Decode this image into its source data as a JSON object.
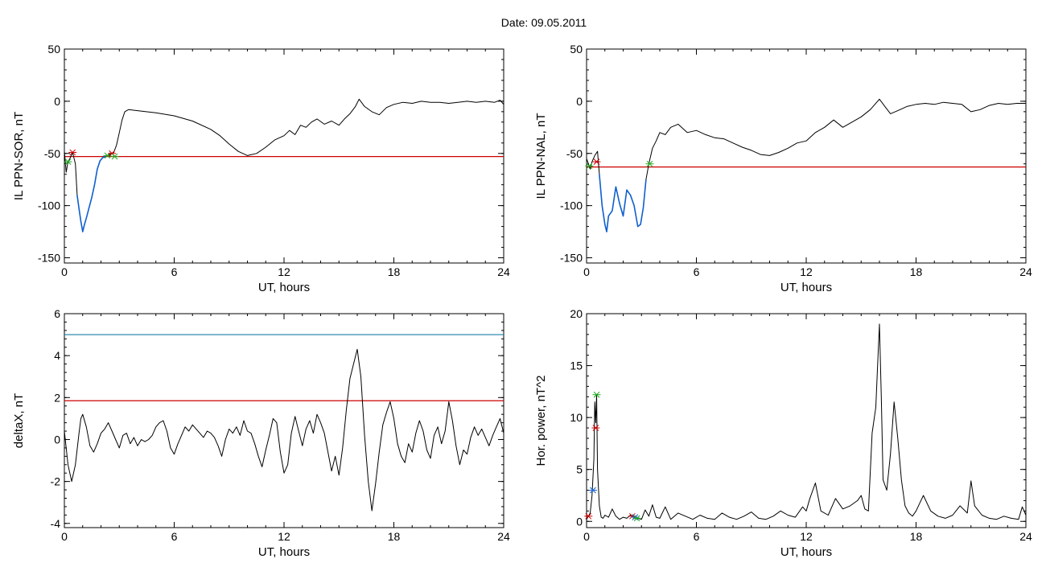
{
  "figure": {
    "title": "Date:  09.05.2011"
  },
  "colors": {
    "trace": "#000000",
    "threshold": "#cc0000",
    "highlight": "#1060d0",
    "cyan_line": "#1a7fa8",
    "marker_red": "#cc0000",
    "marker_green": "#22aa22",
    "marker_blue": "#1060d0"
  },
  "chart_data": [
    {
      "type": "line",
      "id": "ppn-sor",
      "xlabel": "UT, hours",
      "ylabel": "IL PPN-SOR, nT",
      "xlim": [
        0,
        24
      ],
      "ylim": [
        -155,
        50
      ],
      "xticks": [
        0,
        6,
        12,
        18,
        24
      ],
      "yticks": [
        -150,
        -100,
        -50,
        0,
        50
      ],
      "threshold": -53,
      "series": [
        {
          "x": [
            0,
            0.1,
            0.2,
            0.3,
            0.45,
            0.6,
            0.7,
            0.8,
            0.9,
            1.0,
            1.1,
            1.2,
            1.35,
            1.5,
            1.65,
            1.8,
            1.95,
            2.1,
            2.25,
            2.4,
            2.55,
            2.7,
            2.85,
            3.0,
            3.15,
            3.3,
            3.5,
            4,
            5,
            6,
            7,
            8,
            8.5,
            9,
            9.5,
            10,
            10.5,
            11,
            11.5,
            12,
            12.3,
            12.6,
            12.9,
            13.2,
            13.5,
            13.8,
            14.2,
            14.6,
            15,
            15.3,
            15.6,
            15.9,
            16.1,
            16.4,
            16.8,
            17.2,
            17.6,
            18,
            18.5,
            19,
            19.5,
            20,
            20.5,
            21,
            21.5,
            22,
            22.5,
            23,
            23.5,
            23.8,
            24
          ],
          "y": [
            -48,
            -68,
            -58,
            -55,
            -49,
            -60,
            -90,
            -103,
            -115,
            -125,
            -118,
            -112,
            -102,
            -92,
            -80,
            -65,
            -57,
            -54,
            -53,
            -52,
            -50,
            -49,
            -42,
            -30,
            -18,
            -10,
            -8,
            -9,
            -11,
            -14,
            -19,
            -27,
            -33,
            -41,
            -48,
            -52,
            -50,
            -44,
            -37,
            -33,
            -28,
            -32,
            -23,
            -25,
            -20,
            -17,
            -22,
            -19,
            -23,
            -17,
            -12,
            -5,
            2,
            -5,
            -10,
            -13,
            -6,
            -3,
            -1,
            -2,
            0,
            -1,
            -1,
            -2,
            -1,
            0,
            -1,
            0,
            -1,
            1,
            -3
          ]
        },
        {
          "name_hidden": "",
          "x": [
            0.7,
            0.8,
            0.9,
            1.0,
            1.1,
            1.2,
            1.35,
            1.5,
            1.65,
            1.8,
            1.95,
            2.1,
            2.25
          ],
          "y": [
            -90,
            -103,
            -115,
            -125,
            -118,
            -112,
            -102,
            -92,
            -80,
            -65,
            -57,
            -54,
            -53
          ]
        }
      ],
      "markers": [
        {
          "x": 0.2,
          "y": -58,
          "color": "green"
        },
        {
          "x": 0.45,
          "y": -49,
          "color": "red"
        },
        {
          "x": 2.35,
          "y": -52,
          "color": "green"
        },
        {
          "x": 2.6,
          "y": -50,
          "color": "red"
        },
        {
          "x": 2.75,
          "y": -53,
          "color": "green"
        }
      ]
    },
    {
      "type": "line",
      "id": "ppn-nal",
      "xlabel": "UT, hours",
      "ylabel": "IL PPN-NAL, nT",
      "xlim": [
        0,
        24
      ],
      "ylim": [
        -155,
        50
      ],
      "xticks": [
        0,
        6,
        12,
        18,
        24
      ],
      "yticks": [
        -150,
        -100,
        -50,
        0,
        50
      ],
      "threshold": -63,
      "series": [
        {
          "x": [
            0,
            0.1,
            0.2,
            0.3,
            0.45,
            0.6,
            0.7,
            0.85,
            1.0,
            1.1,
            1.2,
            1.4,
            1.6,
            1.8,
            2.0,
            2.2,
            2.4,
            2.6,
            2.8,
            2.95,
            3.1,
            3.25,
            3.4,
            3.6,
            3.8,
            4.0,
            4.3,
            4.6,
            5.0,
            5.5,
            6.0,
            6.5,
            7.0,
            7.5,
            8.0,
            8.5,
            9.0,
            9.5,
            10.0,
            10.5,
            11.0,
            11.5,
            12.0,
            12.5,
            13.0,
            13.5,
            14.0,
            14.5,
            15.0,
            15.5,
            16.0,
            16.3,
            16.6,
            17.0,
            17.5,
            18.0,
            18.5,
            19.0,
            19.5,
            20.0,
            20.5,
            21.0,
            21.5,
            22.0,
            22.5,
            23.0,
            23.5,
            24
          ],
          "y": [
            -55,
            -60,
            -65,
            -58,
            -52,
            -48,
            -70,
            -100,
            -118,
            -125,
            -110,
            -105,
            -82,
            -98,
            -110,
            -85,
            -90,
            -100,
            -120,
            -118,
            -102,
            -75,
            -60,
            -45,
            -38,
            -30,
            -32,
            -25,
            -22,
            -30,
            -28,
            -32,
            -35,
            -36,
            -40,
            -44,
            -47,
            -51,
            -52,
            -49,
            -45,
            -40,
            -38,
            -30,
            -25,
            -18,
            -25,
            -20,
            -15,
            -8,
            2,
            -5,
            -12,
            -9,
            -5,
            -3,
            -2,
            -3,
            -1,
            -2,
            -3,
            -10,
            -8,
            -4,
            -2,
            -3,
            -2,
            -2
          ]
        },
        {
          "x": [
            0.7,
            0.85,
            1.0,
            1.1,
            1.2,
            1.4,
            1.6,
            1.8,
            2.0,
            2.2,
            2.4,
            2.6,
            2.8,
            2.95,
            3.1,
            3.25
          ],
          "y": [
            -70,
            -100,
            -118,
            -125,
            -110,
            -105,
            -82,
            -98,
            -110,
            -85,
            -90,
            -100,
            -120,
            -118,
            -102,
            -75
          ]
        }
      ],
      "markers": [
        {
          "x": 0.15,
          "y": -62,
          "color": "green"
        },
        {
          "x": 0.55,
          "y": -58,
          "color": "red"
        },
        {
          "x": 3.45,
          "y": -60,
          "color": "green"
        }
      ]
    },
    {
      "type": "line",
      "id": "deltax",
      "xlabel": "UT, hours",
      "ylabel": "deltaX, nT",
      "xlim": [
        0,
        24
      ],
      "ylim": [
        -4.2,
        6
      ],
      "xticks": [
        0,
        6,
        12,
        18,
        24
      ],
      "yticks": [
        -4,
        -2,
        0,
        2,
        4,
        6
      ],
      "threshold": 1.85,
      "upper_line": 5.0,
      "series": [
        {
          "x": [
            0,
            0.2,
            0.4,
            0.6,
            0.8,
            0.9,
            1.0,
            1.2,
            1.4,
            1.6,
            1.8,
            2.0,
            2.2,
            2.4,
            2.6,
            2.8,
            3.0,
            3.2,
            3.4,
            3.6,
            3.8,
            4.0,
            4.2,
            4.4,
            4.6,
            4.8,
            5.0,
            5.2,
            5.4,
            5.6,
            5.8,
            6.0,
            6.2,
            6.4,
            6.6,
            6.8,
            7.0,
            7.2,
            7.4,
            7.6,
            7.8,
            8.0,
            8.2,
            8.4,
            8.6,
            8.8,
            9.0,
            9.2,
            9.4,
            9.6,
            9.8,
            10.0,
            10.2,
            10.4,
            10.6,
            10.8,
            11.0,
            11.2,
            11.4,
            11.6,
            11.8,
            12.0,
            12.2,
            12.4,
            12.6,
            12.8,
            13.0,
            13.2,
            13.4,
            13.6,
            13.8,
            14.0,
            14.2,
            14.4,
            14.6,
            14.8,
            15.0,
            15.2,
            15.4,
            15.6,
            15.8,
            16.0,
            16.2,
            16.4,
            16.6,
            16.8,
            17.0,
            17.2,
            17.4,
            17.6,
            17.8,
            18.0,
            18.2,
            18.4,
            18.6,
            18.8,
            19.0,
            19.2,
            19.4,
            19.6,
            19.8,
            20.0,
            20.2,
            20.4,
            20.6,
            20.8,
            21.0,
            21.2,
            21.4,
            21.6,
            21.8,
            22.0,
            22.2,
            22.4,
            22.6,
            22.8,
            23.0,
            23.2,
            23.4,
            23.6,
            23.8,
            24
          ],
          "y": [
            0.4,
            -1.2,
            -2.0,
            -1.2,
            0.3,
            1.0,
            1.2,
            0.6,
            -0.3,
            -0.6,
            -0.2,
            0.3,
            0.5,
            0.8,
            0.4,
            0.0,
            -0.4,
            0.2,
            0.3,
            -0.2,
            0.1,
            -0.3,
            0.0,
            -0.1,
            0.0,
            0.2,
            0.6,
            0.8,
            0.9,
            0.4,
            -0.4,
            -0.7,
            -0.2,
            0.2,
            0.6,
            0.4,
            0.7,
            0.5,
            0.3,
            0.1,
            0.4,
            0.3,
            0.1,
            -0.3,
            -0.8,
            0.0,
            0.5,
            0.3,
            0.6,
            0.2,
            0.9,
            0.4,
            0.3,
            -0.2,
            -0.8,
            -1.3,
            -0.5,
            0.2,
            1.0,
            0.8,
            -0.6,
            -1.6,
            -1.2,
            0.3,
            1.1,
            0.4,
            -0.3,
            0.5,
            0.9,
            0.3,
            1.2,
            0.8,
            0.3,
            -0.6,
            -1.5,
            -0.8,
            -1.7,
            -0.4,
            1.4,
            2.9,
            3.6,
            4.3,
            3.0,
            0.2,
            -2.0,
            -3.4,
            -2.1,
            -0.6,
            0.7,
            1.3,
            1.8,
            1.0,
            -0.2,
            -0.8,
            -1.1,
            -0.2,
            -0.6,
            0.3,
            0.9,
            0.4,
            -0.5,
            -0.9,
            0.2,
            0.6,
            -0.2,
            0.4,
            1.8,
            0.9,
            -0.3,
            -1.2,
            -0.5,
            -0.7,
            0.1,
            0.6,
            0.2,
            0.5,
            0.1,
            -0.3,
            0.2,
            0.6,
            1.0,
            0.3
          ]
        }
      ]
    },
    {
      "type": "line",
      "id": "hor-power",
      "xlabel": "UT, hours",
      "ylabel": "Hor. power, nT^2",
      "xlim": [
        0,
        24
      ],
      "ylim": [
        -0.6,
        20
      ],
      "xticks": [
        0,
        6,
        12,
        18,
        24
      ],
      "yticks": [
        0,
        5,
        10,
        15,
        20
      ],
      "series": [
        {
          "x": [
            0,
            0.1,
            0.2,
            0.3,
            0.4,
            0.45,
            0.5,
            0.55,
            0.6,
            0.7,
            0.8,
            0.9,
            1.0,
            1.2,
            1.4,
            1.6,
            1.8,
            2.0,
            2.2,
            2.4,
            2.6,
            2.8,
            3.0,
            3.2,
            3.4,
            3.6,
            3.8,
            4.0,
            4.3,
            4.6,
            5.0,
            5.4,
            5.8,
            6.2,
            6.6,
            7.0,
            7.4,
            7.8,
            8.2,
            8.6,
            9.0,
            9.4,
            9.8,
            10.2,
            10.6,
            11.0,
            11.4,
            11.8,
            12.0,
            12.2,
            12.5,
            12.8,
            13.2,
            13.6,
            14.0,
            14.4,
            14.8,
            15.0,
            15.2,
            15.4,
            15.6,
            15.8,
            15.9,
            16.0,
            16.1,
            16.2,
            16.4,
            16.6,
            16.8,
            17.0,
            17.2,
            17.4,
            17.6,
            17.8,
            18.0,
            18.4,
            18.8,
            19.2,
            19.6,
            20.0,
            20.4,
            20.8,
            21.0,
            21.2,
            21.6,
            22.0,
            22.4,
            22.8,
            23.2,
            23.6,
            23.8,
            24
          ],
          "y": [
            0.2,
            0.5,
            0.8,
            2.5,
            6.0,
            11.5,
            9.5,
            12.2,
            5.0,
            1.5,
            0.4,
            0.3,
            0.6,
            0.4,
            1.2,
            0.5,
            0.2,
            0.4,
            0.3,
            0.6,
            0.5,
            0.3,
            0.2,
            1.1,
            0.5,
            1.6,
            0.4,
            0.3,
            1.4,
            0.2,
            0.8,
            0.5,
            0.2,
            0.6,
            0.3,
            0.2,
            0.8,
            0.4,
            0.2,
            0.5,
            0.9,
            0.3,
            0.2,
            0.5,
            1.0,
            0.6,
            0.4,
            1.4,
            1.0,
            2.2,
            3.7,
            1.0,
            0.6,
            2.2,
            1.2,
            1.5,
            2.0,
            2.5,
            1.2,
            1.0,
            8.5,
            11.0,
            15.0,
            19.0,
            12.0,
            4.0,
            3.0,
            6.5,
            11.5,
            8.0,
            4.0,
            1.5,
            0.8,
            0.5,
            1.0,
            2.5,
            1.0,
            0.5,
            0.3,
            0.6,
            1.5,
            0.8,
            3.9,
            1.5,
            0.6,
            0.3,
            0.2,
            0.5,
            0.3,
            0.2,
            1.4,
            0.6
          ]
        }
      ],
      "markers": [
        {
          "x": 0.1,
          "y": 0.5,
          "color": "red"
        },
        {
          "x": 0.35,
          "y": 3.0,
          "color": "blue"
        },
        {
          "x": 0.5,
          "y": 9.0,
          "color": "red"
        },
        {
          "x": 0.55,
          "y": 12.2,
          "color": "green"
        },
        {
          "x": 2.5,
          "y": 0.5,
          "color": "red"
        },
        {
          "x": 2.65,
          "y": 0.4,
          "color": "blue"
        },
        {
          "x": 2.75,
          "y": 0.3,
          "color": "green"
        }
      ]
    }
  ]
}
